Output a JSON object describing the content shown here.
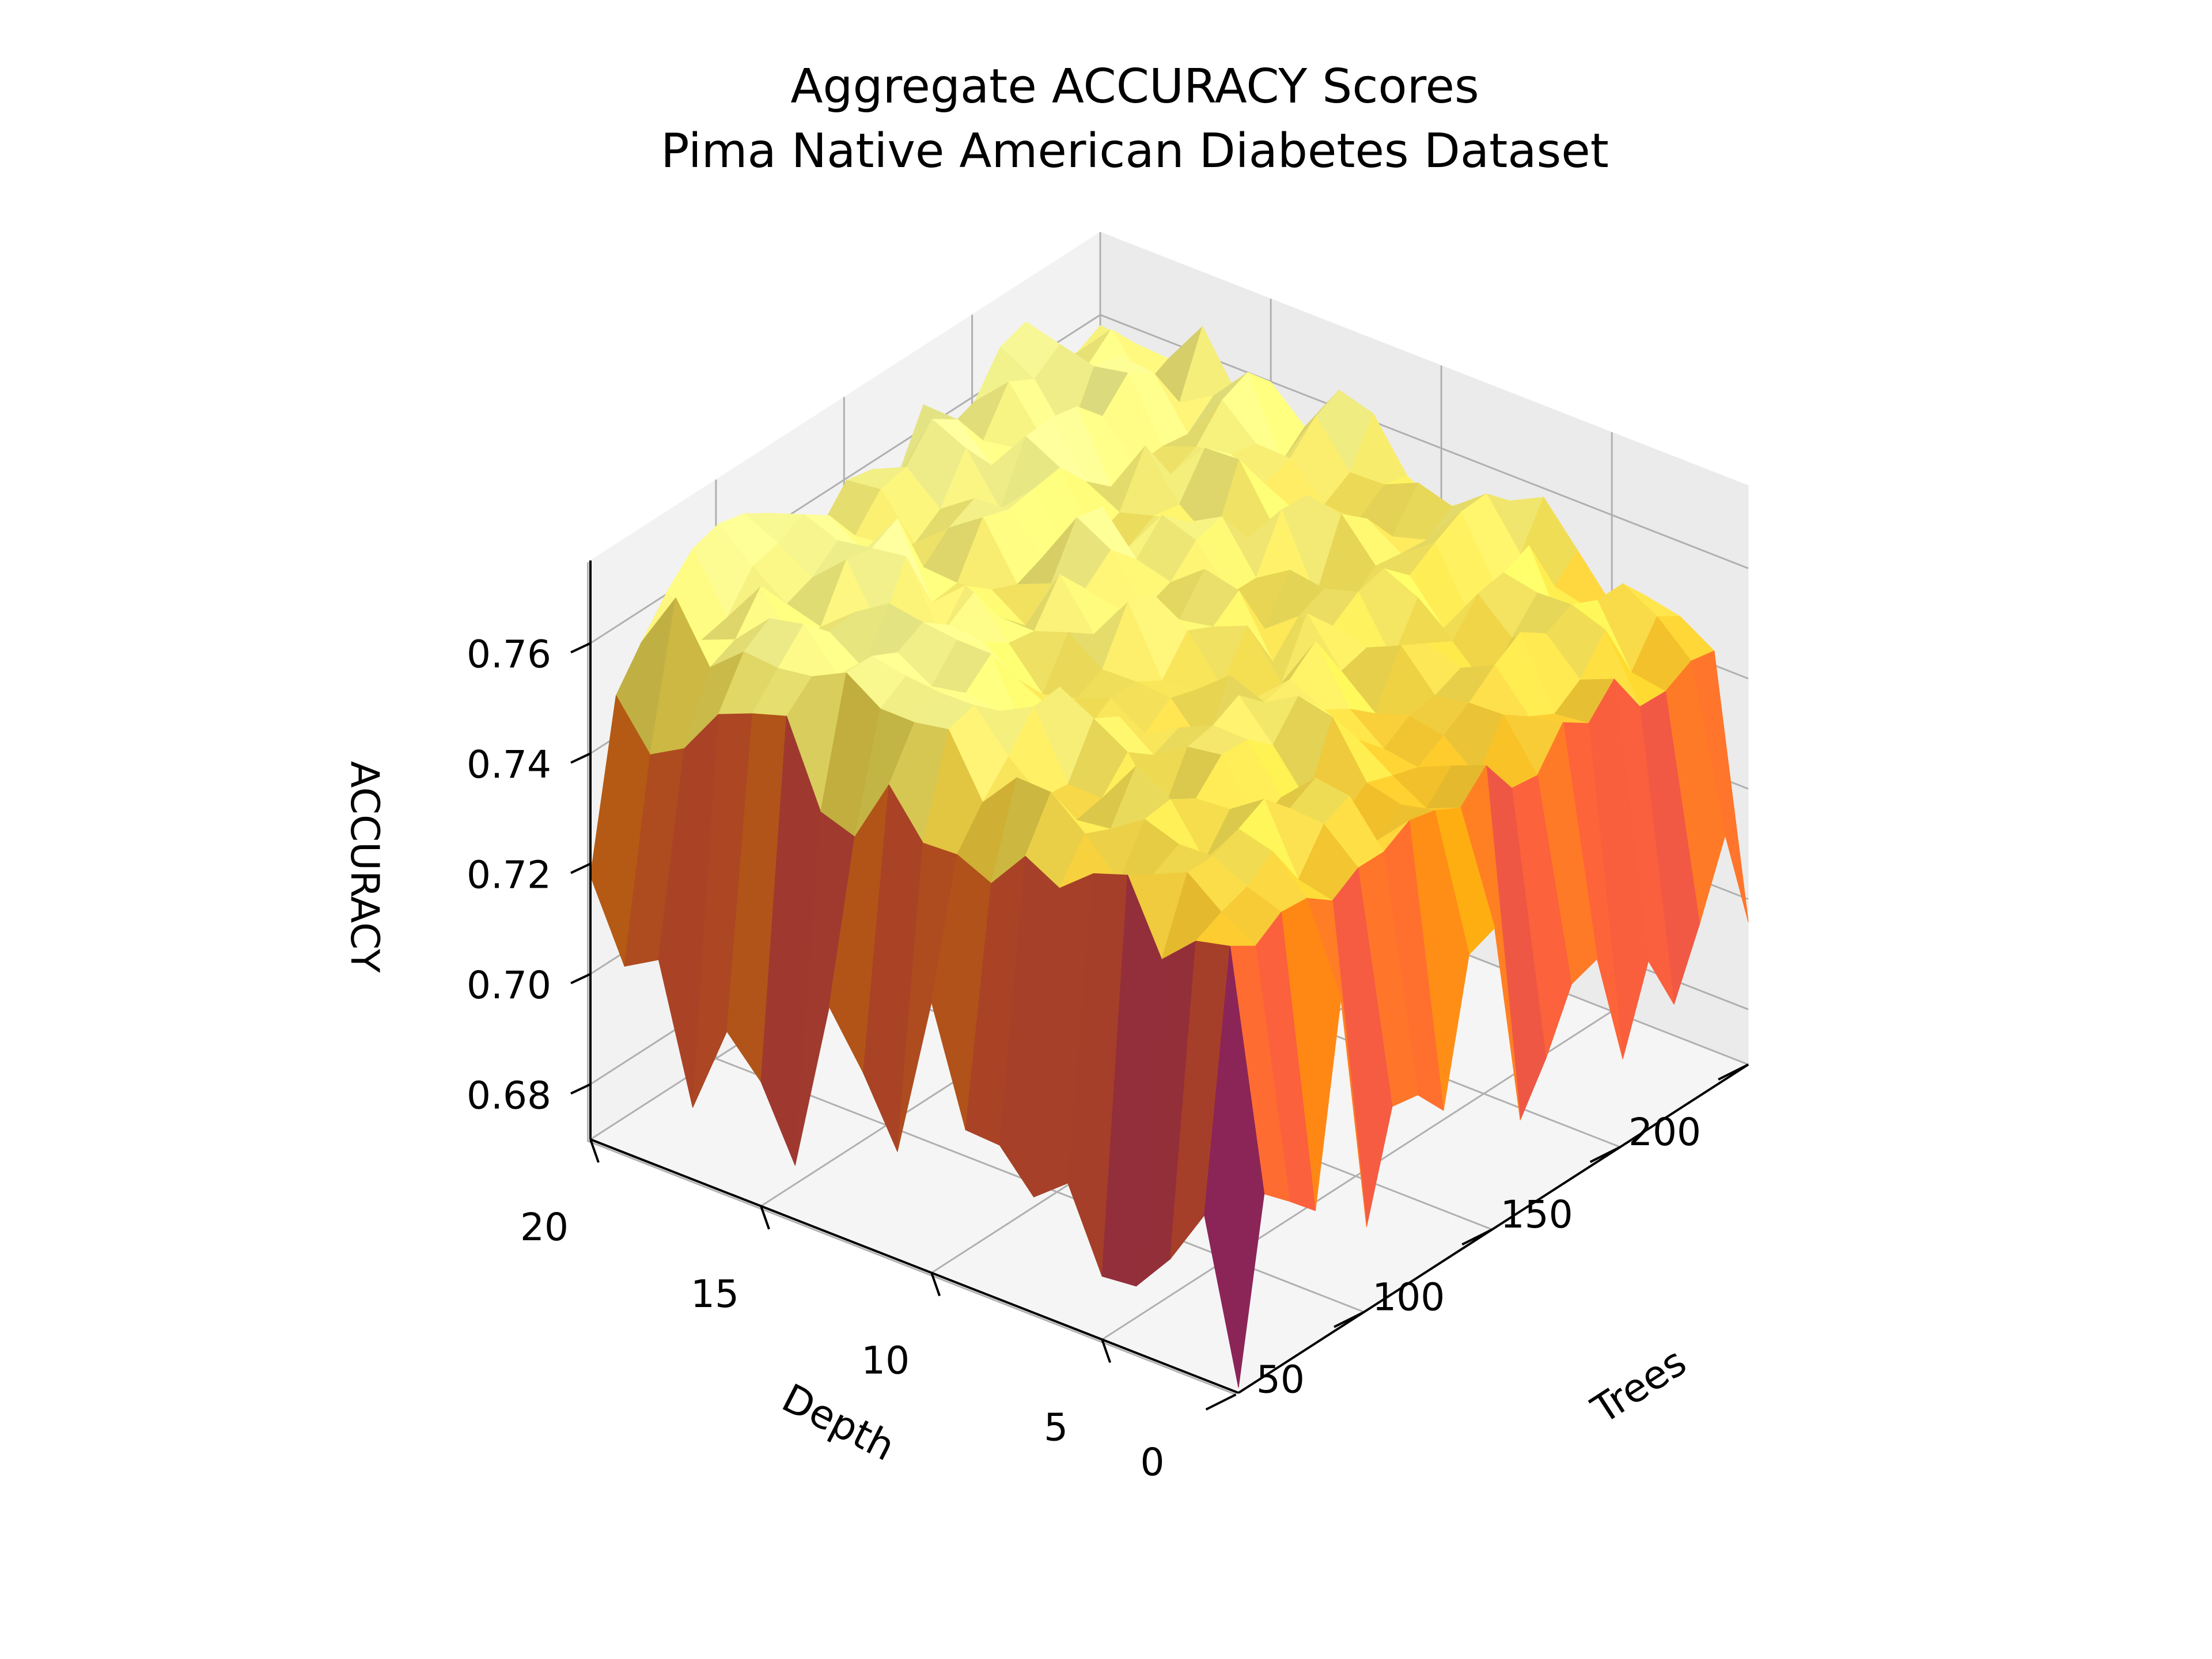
{
  "chart_data": {
    "type": "surface3d",
    "title": "Aggregate ACCURACY Scores",
    "subtitle": "Pima Native American Diabetes Dataset",
    "xlabel": "Trees",
    "ylabel": "Depth",
    "zlabel": "ACCURACY",
    "x_ticks": [
      "0",
      "50",
      "100",
      "150",
      "200"
    ],
    "y_ticks": [
      "5",
      "10",
      "15",
      "20"
    ],
    "z_ticks": [
      "0.68",
      "0.70",
      "0.72",
      "0.74",
      "0.76"
    ],
    "xlim": [
      1,
      200
    ],
    "ylim": [
      1,
      20
    ],
    "zlim": [
      0.67,
      0.775
    ],
    "colormap": "inferno",
    "grid": true,
    "trees": [
      1,
      11,
      21,
      31,
      41,
      51,
      61,
      71,
      81,
      91,
      101,
      111,
      121,
      131,
      141,
      151,
      161,
      171,
      181,
      191,
      200
    ],
    "depth": [
      1,
      2,
      3,
      4,
      5,
      6,
      7,
      8,
      9,
      10,
      11,
      12,
      13,
      14,
      15,
      16,
      17,
      18,
      19,
      20
    ],
    "accuracy_summary": {
      "min_at_1_tree": 0.677,
      "shallow_depth_plateau": 0.748,
      "deep_depth_plateau": 0.762,
      "max": 0.771
    }
  }
}
